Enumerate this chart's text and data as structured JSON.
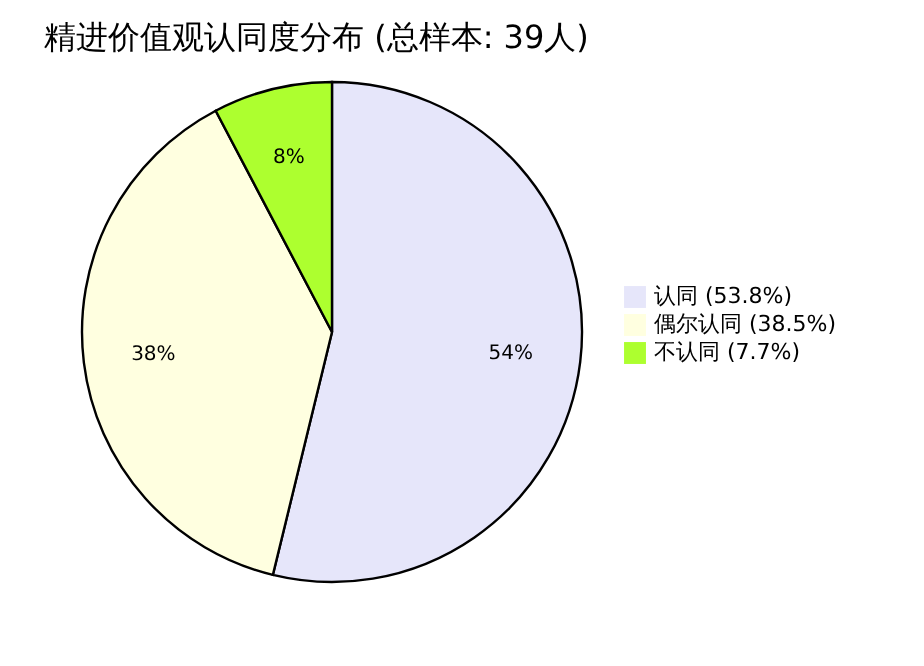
{
  "chart_data": {
    "type": "pie",
    "title": "精进价值观认同度分布 (总样本: 39人)",
    "categories": [
      "认同 (53.8%)",
      "偶尔认同 (38.5%)",
      "不认同 (7.7%)"
    ],
    "values": [
      53.8,
      38.5,
      7.7
    ],
    "colors": [
      "#e6e6fa",
      "#ffffe0",
      "#adff2f"
    ],
    "value_labels": [
      "54%",
      "38%",
      "8%"
    ],
    "legend": "right"
  }
}
